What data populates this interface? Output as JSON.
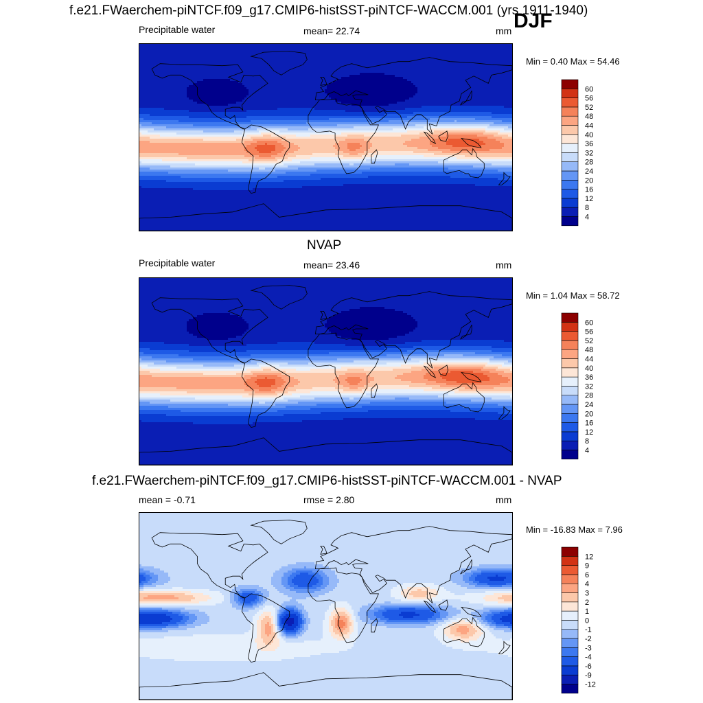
{
  "header": {
    "title": "f.e21.FWaerchem-piNTCF.f09_g17.CMIP6-histSST-piNTCF-WACCM.001 (yrs 1911-1940)",
    "season": "DJF"
  },
  "panels": [
    {
      "id": "model",
      "variable": "Precipitable water",
      "stat": "mean=  22.74",
      "units": "mm",
      "minmax": "Min =   0.40 Max =  54.46",
      "field": "model"
    },
    {
      "id": "obs",
      "title": "NVAP",
      "variable": "Precipitable water",
      "stat": "mean=  23.46",
      "units": "mm",
      "minmax": "Min =   1.04 Max =  58.72",
      "field": "obs"
    },
    {
      "id": "diff",
      "title": "f.e21.FWaerchem-piNTCF.f09_g17.CMIP6-histSST-piNTCF-WACCM.001 - NVAP",
      "variable": "mean =  -0.71",
      "stat": "rmse =   2.80",
      "units": "mm",
      "minmax": "Min = -16.83 Max =   7.96",
      "field": "diff"
    }
  ],
  "chart_data": [
    {
      "type": "heatmap",
      "title": "Precipitable water",
      "units": "mm",
      "mean": 22.74,
      "min": 0.4,
      "max": 54.46,
      "levels": [
        4,
        8,
        12,
        16,
        20,
        24,
        28,
        32,
        36,
        40,
        44,
        48,
        52,
        56,
        60
      ],
      "colors": [
        "#00008c",
        "#0a1eb4",
        "#0a3cd2",
        "#1e5ae6",
        "#3c78f0",
        "#6496f5",
        "#96b9f8",
        "#c8dcfa",
        "#e6f0fc",
        "#fde6d7",
        "#fcc8aa",
        "#fca582",
        "#f5825a",
        "#eb5a32",
        "#d23214",
        "#8c0000"
      ]
    },
    {
      "type": "heatmap",
      "title": "NVAP",
      "units": "mm",
      "mean": 23.46,
      "min": 1.04,
      "max": 58.72,
      "levels": [
        4,
        8,
        12,
        16,
        20,
        24,
        28,
        32,
        36,
        40,
        44,
        48,
        52,
        56,
        60
      ],
      "colors": [
        "#00008c",
        "#0a1eb4",
        "#0a3cd2",
        "#1e5ae6",
        "#3c78f0",
        "#6496f5",
        "#96b9f8",
        "#c8dcfa",
        "#e6f0fc",
        "#fde6d7",
        "#fcc8aa",
        "#fca582",
        "#f5825a",
        "#eb5a32",
        "#d23214",
        "#8c0000"
      ]
    },
    {
      "type": "heatmap",
      "title": "f.e21.FWaerchem-piNTCF.f09_g17.CMIP6-histSST-piNTCF-WACCM.001 - NVAP",
      "units": "mm",
      "mean": -0.71,
      "rmse": 2.8,
      "min": -16.83,
      "max": 7.96,
      "levels": [
        -12,
        -9,
        -6,
        -4,
        -3,
        -2,
        -1,
        0,
        1,
        2,
        3,
        4,
        6,
        9,
        12
      ],
      "colors": [
        "#00008c",
        "#0a1eb4",
        "#0a3cd2",
        "#1e5ae6",
        "#3c78f0",
        "#6496f5",
        "#96b9f8",
        "#c8dcfa",
        "#e6f0fc",
        "#fde6d7",
        "#fcc8aa",
        "#fca582",
        "#f5825a",
        "#eb5a32",
        "#d23214",
        "#8c0000"
      ]
    }
  ]
}
